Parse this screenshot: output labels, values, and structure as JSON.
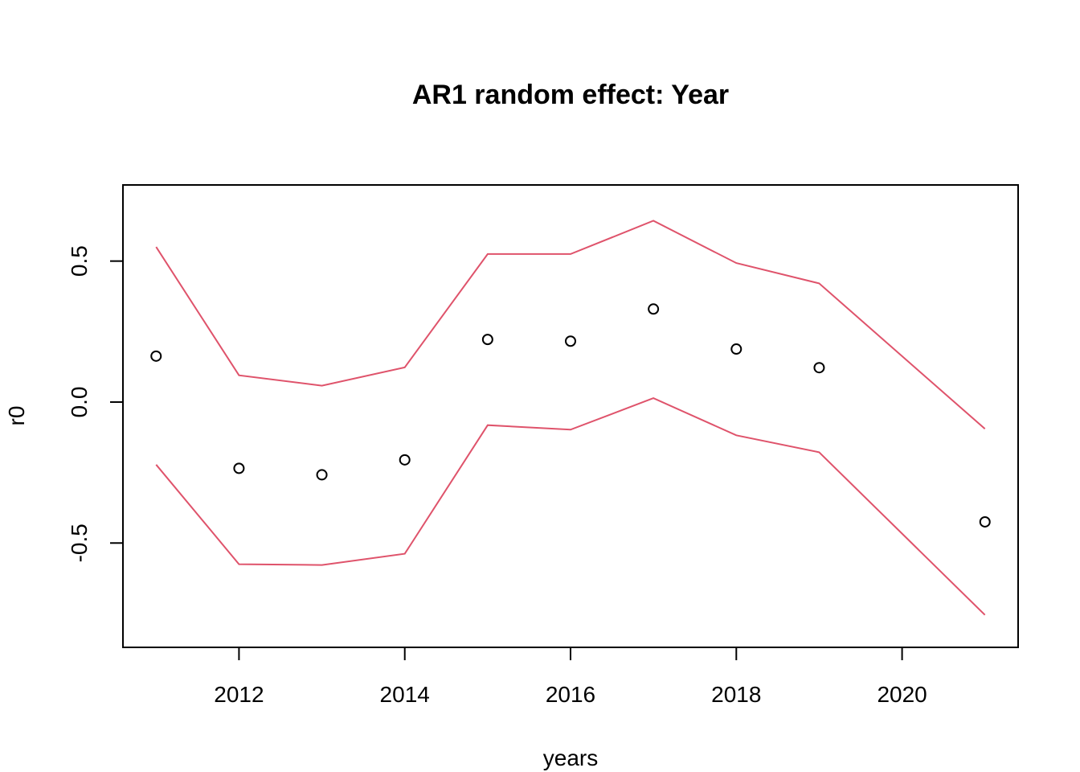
{
  "chart_data": {
    "type": "line",
    "title": "AR1 random effect: Year",
    "xlabel": "years",
    "ylabel": "r0",
    "xlim": [
      2010.6,
      2021.4
    ],
    "ylim": [
      -0.87,
      0.77
    ],
    "x_ticks": [
      2012,
      2014,
      2016,
      2018,
      2020
    ],
    "x_tick_labels": [
      "2012",
      "2014",
      "2016",
      "2018",
      "2020"
    ],
    "y_ticks": [
      -0.5,
      0.0,
      0.5
    ],
    "y_tick_labels": [
      "-0.5",
      "0.0",
      "0.5"
    ],
    "grid": false,
    "legend": "none",
    "x": [
      2011,
      2012,
      2013,
      2014,
      2015,
      2016,
      2017,
      2018,
      2019,
      2021
    ],
    "series": [
      {
        "kind": "points",
        "color": "#000000",
        "values": [
          0.163,
          -0.235,
          -0.258,
          -0.205,
          0.222,
          0.216,
          0.33,
          0.188,
          0.122,
          -0.425
        ]
      },
      {
        "kind": "line",
        "color": "#DF536B",
        "values": [
          0.55,
          0.095,
          0.058,
          0.123,
          0.525,
          0.525,
          0.643,
          0.493,
          0.421,
          -0.095
        ]
      },
      {
        "kind": "line",
        "color": "#DF536B",
        "values": [
          -0.222,
          -0.575,
          -0.578,
          -0.538,
          -0.082,
          -0.098,
          0.014,
          -0.118,
          -0.178,
          -0.755
        ]
      }
    ]
  }
}
